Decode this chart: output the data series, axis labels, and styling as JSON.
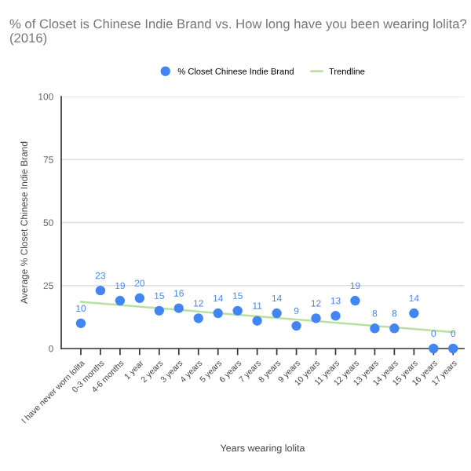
{
  "chart_data": {
    "type": "scatter",
    "title": "% of Closet is Chinese Indie Brand vs. How long have you been wearing lolita? (2016)",
    "xlabel": "Years wearing lolita",
    "ylabel": "Average % Closet Chinese Indie Brand",
    "categories": [
      "I have never worn lolita",
      "0-3 months",
      "4-6 months",
      "1 year",
      "2 years",
      "3 years",
      "4 years",
      "5 years",
      "6 years",
      "7 years",
      "8 years",
      "9 years",
      "10 years",
      "11 years",
      "12 years",
      "13 years",
      "14 years",
      "15 years",
      "16 years",
      "17 years"
    ],
    "series": [
      {
        "name": "% Closet Chinese Indie Brand",
        "color": "#4285f4",
        "marker": "circle",
        "values": [
          10,
          23,
          19,
          20,
          15,
          16,
          12,
          14,
          15,
          11,
          14,
          9,
          12,
          13,
          19,
          8,
          8,
          14,
          0,
          0
        ],
        "value_labels": [
          "10",
          "23",
          "19",
          "20",
          "15",
          "16",
          "12",
          "14",
          "15",
          "11",
          "14",
          "9",
          "12",
          "13",
          "19",
          "8",
          "8",
          "14",
          "0",
          "0"
        ]
      },
      {
        "name": "Trendline",
        "type": "line",
        "color": "#b7e1a1",
        "x": [
          "I have never worn lolita",
          "17 years"
        ],
        "values": [
          18.5,
          6.5
        ]
      }
    ],
    "ylim": [
      0,
      100
    ],
    "yticks": [
      0,
      25,
      50,
      75,
      100
    ],
    "grid": "y",
    "legend": "top"
  }
}
